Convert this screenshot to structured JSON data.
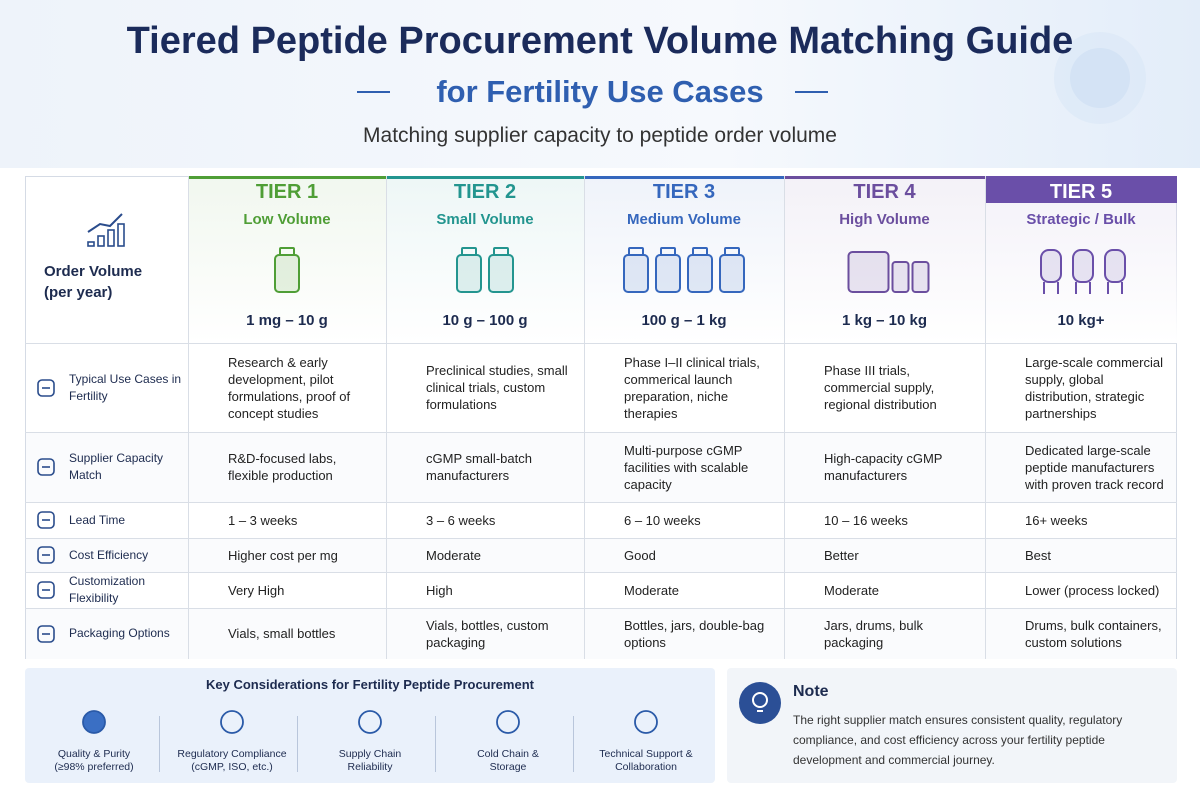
{
  "header": {
    "title": "Tiered Peptide Procurement Volume Matching Guide",
    "subtitle": "for Fertility Use Cases",
    "tagline": "Matching supplier capacity to peptide order volume"
  },
  "table": {
    "corner_label": "Order Volume (per year)",
    "tiers": [
      {
        "name": "TIER 1",
        "volume": "Low Volume",
        "range": "1 mg – 10 g",
        "color": "#4f9e36"
      },
      {
        "name": "TIER 2",
        "volume": "Small Volume",
        "range": "10 g – 100 g",
        "color": "#23958f"
      },
      {
        "name": "TIER 3",
        "volume": "Medium Volume",
        "range": "100 g – 1 kg",
        "color": "#3567bd"
      },
      {
        "name": "TIER 4",
        "volume": "High Volume",
        "range": "1 kg – 10 kg",
        "color": "#6b4e9e"
      },
      {
        "name": "TIER 5",
        "volume": "Strategic / Bulk",
        "range": "10 kg+",
        "color": "#6a4fa9"
      }
    ],
    "rows": [
      {
        "label": "Typical Use Cases in Fertility",
        "cells": [
          "Research & early development, pilot formulations, proof of concept studies",
          "Preclinical studies, small clinical trials, custom formulations",
          "Phase I–II clinical trials, commerical launch preparation, niche therapies",
          "Phase III trials, commercial supply, regional distribution",
          "Large-scale commercial supply, global distribution, strategic partnerships"
        ]
      },
      {
        "label": "Supplier Capacity Match",
        "cells": [
          "R&D-focused labs, flexible production",
          "cGMP small-batch manufacturers",
          "Multi-purpose cGMP facilities with scalable capacity",
          "High-capacity cGMP manufacturers",
          "Dedicated large-scale peptide manufacturers with proven track record"
        ]
      },
      {
        "label": "Lead Time",
        "cells": [
          "1 – 3 weeks",
          "3 – 6 weeks",
          "6 – 10 weeks",
          "10 – 16 weeks",
          "16+ weeks"
        ]
      },
      {
        "label": "Cost Efficiency",
        "cells": [
          "Higher cost per mg",
          "Moderate",
          "Good",
          "Better",
          "Best"
        ]
      },
      {
        "label": "Customization Flexibility",
        "cells": [
          "Very High",
          "High",
          "Moderate",
          "Moderate",
          "Lower (process locked)"
        ]
      },
      {
        "label": "Packaging Options",
        "cells": [
          "Vials, small bottles",
          "Vials, bottles, custom packaging",
          "Bottles, jars, double-bag options",
          "Jars, drums, bulk packaging",
          "Drums, bulk containers, custom solutions"
        ]
      }
    ]
  },
  "considerations": {
    "title": "Key Considerations for Fertility Peptide Procurement",
    "items": [
      [
        "Quality & Purity",
        "(≥98% preferred)"
      ],
      [
        "Regulatory Compliance",
        "(cGMP, ISO, etc.)"
      ],
      [
        "Supply Chain",
        "Reliability"
      ],
      [
        "Cold Chain &",
        "Storage"
      ],
      [
        "Technical Support &",
        "Collaboration"
      ]
    ]
  },
  "note": {
    "title": "Note",
    "text": "The right supplier match ensures consistent quality, regulatory compliance, and cost efficiency across your fertility peptide development and commercial journey."
  }
}
